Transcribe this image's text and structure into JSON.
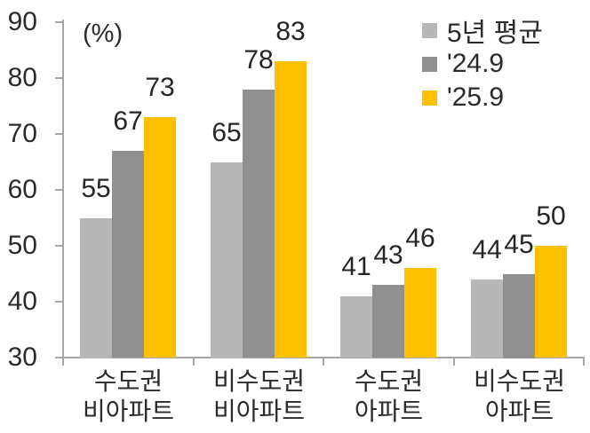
{
  "chart_data": {
    "type": "bar",
    "unit_label": "(%)",
    "categories": [
      [
        "수도권",
        "비아파트"
      ],
      [
        "비수도권",
        "비아파트"
      ],
      [
        "수도권",
        "아파트"
      ],
      [
        "비수도권",
        "아파트"
      ]
    ],
    "series": [
      {
        "name": "5년 평균",
        "color": "#b7b7b7",
        "values": [
          55,
          65,
          41,
          44
        ]
      },
      {
        "name": "'24.9",
        "color": "#909090",
        "values": [
          67,
          78,
          43,
          45
        ]
      },
      {
        "name": "'25.9",
        "color": "#ffc000",
        "values": [
          73,
          83,
          46,
          50
        ]
      }
    ],
    "y_axis": {
      "min": 30,
      "max": 90,
      "step": 10,
      "ticks": [
        90,
        80,
        70,
        60,
        50,
        40,
        30
      ]
    },
    "legend_position": "top-right",
    "grid": false,
    "axis_color": "#a6a6a6",
    "text_color": "#2b2b2b",
    "background": "#ffffff"
  }
}
